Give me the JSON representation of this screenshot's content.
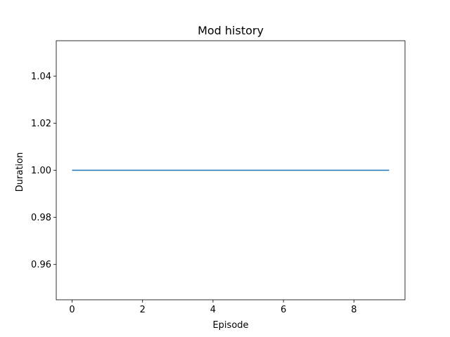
{
  "chart_data": {
    "type": "line",
    "title": "Mod history",
    "xlabel": "Episode",
    "ylabel": "Duration",
    "xlim": [
      -0.45,
      9.45
    ],
    "ylim": [
      0.945,
      1.055
    ],
    "xticks": [
      0,
      2,
      4,
      6,
      8
    ],
    "xtick_labels": [
      "0",
      "2",
      "4",
      "6",
      "8"
    ],
    "yticks": [
      0.96,
      0.98,
      1.0,
      1.02,
      1.04
    ],
    "ytick_labels": [
      "0.96",
      "0.98",
      "1.00",
      "1.02",
      "1.04"
    ],
    "grid": false,
    "series": [
      {
        "color": "#1f77b4",
        "x": [
          0,
          1,
          2,
          3,
          4,
          5,
          6,
          7,
          8,
          9
        ],
        "y": [
          1.0,
          1.0,
          1.0,
          1.0,
          1.0,
          1.0,
          1.0,
          1.0,
          1.0,
          1.0
        ]
      }
    ]
  }
}
